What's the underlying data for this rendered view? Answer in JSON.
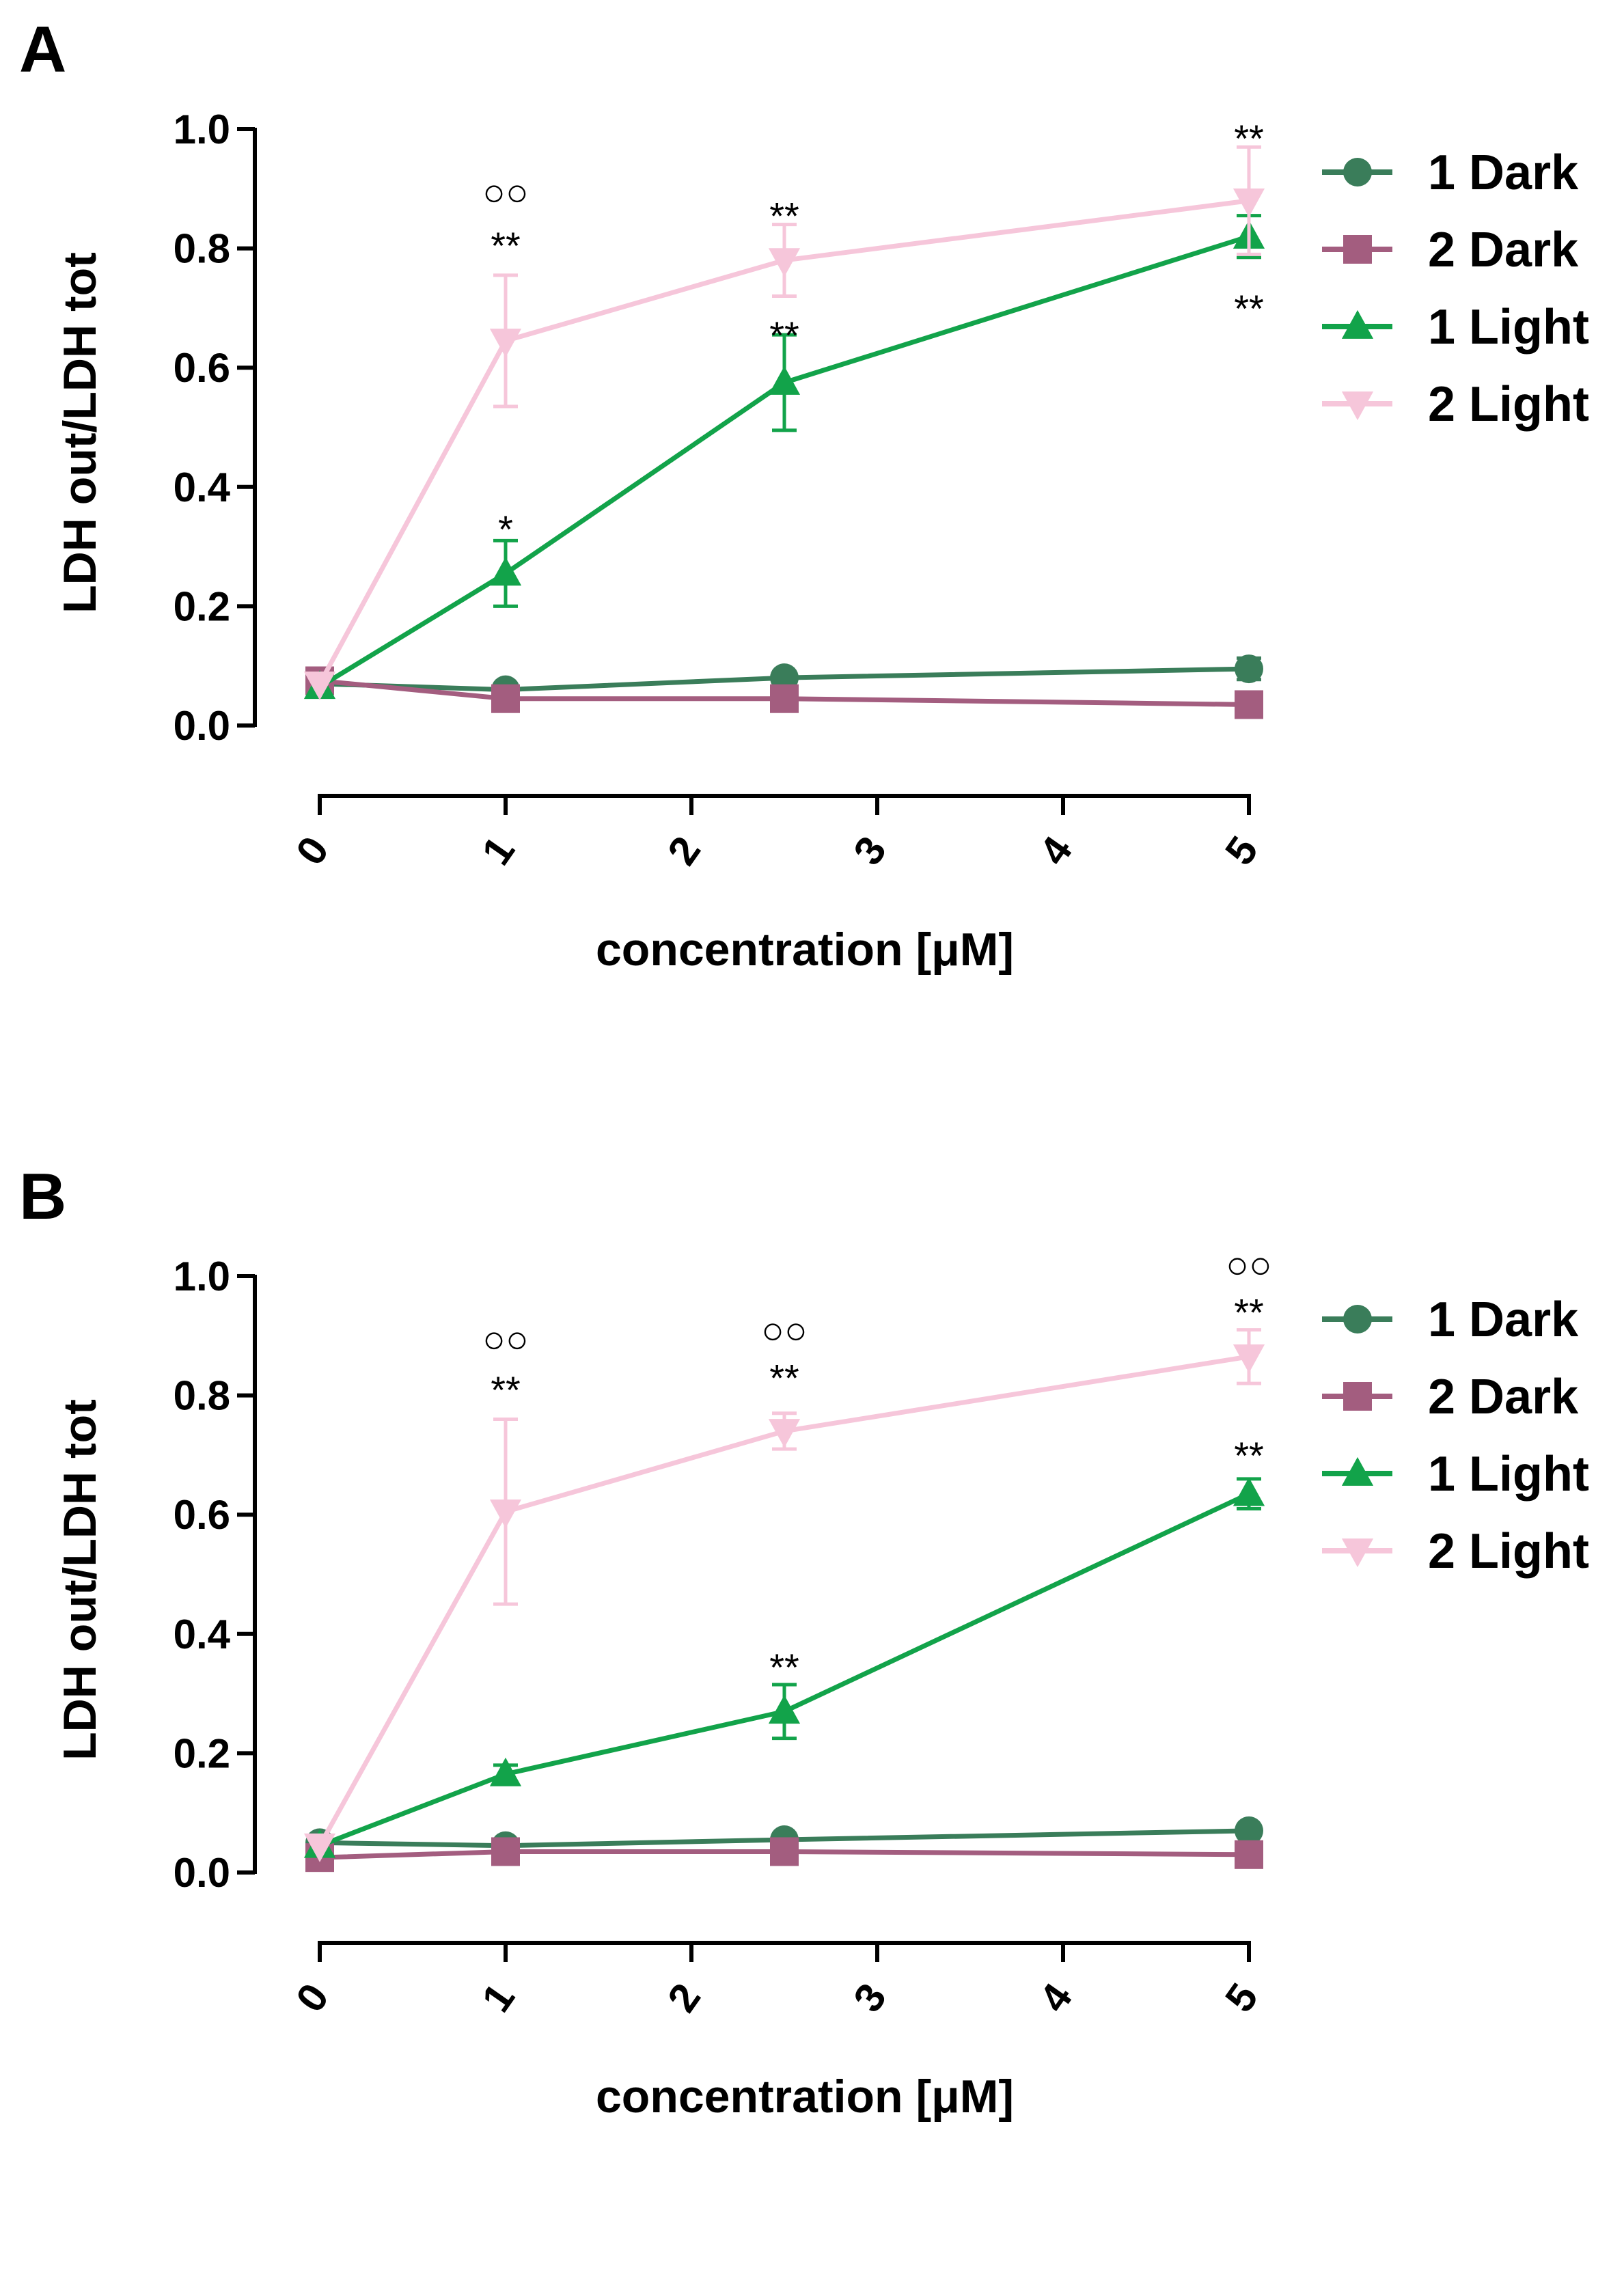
{
  "colors": {
    "dark1": "#3A7D5A",
    "dark2": "#A35D7F",
    "light1": "#12A34A",
    "light2": "#F6C6DA",
    "axis": "#000000"
  },
  "chart_data": [
    {
      "panel": "A",
      "type": "line",
      "xlabel": "concentration [μM]",
      "ylabel": "LDH out/LDH tot",
      "xlim": [
        0,
        5
      ],
      "ylim": [
        0.0,
        1.0
      ],
      "xticks": [
        "0",
        "1",
        "2",
        "3",
        "4",
        "5"
      ],
      "yticks": [
        "0.0",
        "0.2",
        "0.4",
        "0.6",
        "0.8",
        "1.0"
      ],
      "x": [
        0,
        1,
        2.5,
        5
      ],
      "legend": [
        "1 Dark",
        "2 Dark",
        "1 Light",
        "2 Light"
      ],
      "series": [
        {
          "name": "1 Dark",
          "color": "#3A7D5A",
          "marker": "circle",
          "values": [
            0.07,
            0.06,
            0.08,
            0.095
          ],
          "errors": [
            0.005,
            0.005,
            0.005,
            0.018
          ]
        },
        {
          "name": "2 Dark",
          "color": "#A35D7F",
          "marker": "square",
          "values": [
            0.075,
            0.045,
            0.045,
            0.035
          ],
          "errors": [
            0.005,
            0.005,
            0.005,
            0.005
          ]
        },
        {
          "name": "1 Light",
          "color": "#12A34A",
          "marker": "triangle-up",
          "values": [
            0.065,
            0.255,
            0.575,
            0.82
          ],
          "errors": [
            0.005,
            0.055,
            0.08,
            0.035
          ]
        },
        {
          "name": "2 Light",
          "color": "#F6C6DA",
          "marker": "triangle-down",
          "values": [
            0.07,
            0.645,
            0.78,
            0.88
          ],
          "errors": [
            0.005,
            0.11,
            0.06,
            0.09
          ]
        }
      ],
      "annotations": [
        {
          "x": 1,
          "y": 0.895,
          "text": "○○"
        },
        {
          "x": 1,
          "y": 0.805,
          "text": "**"
        },
        {
          "x": 2.5,
          "y": 0.855,
          "text": "**"
        },
        {
          "x": 5,
          "y": 0.985,
          "text": "**"
        },
        {
          "x": 2.5,
          "y": 0.655,
          "text": "**"
        },
        {
          "x": 5,
          "y": 0.7,
          "text": "**"
        },
        {
          "x": 1,
          "y": 0.33,
          "text": "*"
        }
      ]
    },
    {
      "panel": "B",
      "type": "line",
      "xlabel": "concentration [μM]",
      "ylabel": "LDH out/LDH tot",
      "xlim": [
        0,
        5
      ],
      "ylim": [
        0.0,
        1.0
      ],
      "xticks": [
        "0",
        "1",
        "2",
        "3",
        "4",
        "5"
      ],
      "yticks": [
        "0.0",
        "0.2",
        "0.4",
        "0.6",
        "0.8",
        "1.0"
      ],
      "x": [
        0,
        1,
        2.5,
        5
      ],
      "legend": [
        "1 Dark",
        "2 Dark",
        "1 Light",
        "2 Light"
      ],
      "series": [
        {
          "name": "1 Dark",
          "color": "#3A7D5A",
          "marker": "circle",
          "values": [
            0.05,
            0.045,
            0.055,
            0.07
          ],
          "errors": [
            0.005,
            0.005,
            0.005,
            0.005
          ]
        },
        {
          "name": "2 Dark",
          "color": "#A35D7F",
          "marker": "square",
          "values": [
            0.025,
            0.035,
            0.035,
            0.03
          ],
          "errors": [
            0.005,
            0.005,
            0.005,
            0.005
          ]
        },
        {
          "name": "1 Light",
          "color": "#12A34A",
          "marker": "triangle-up",
          "values": [
            0.045,
            0.165,
            0.27,
            0.635
          ],
          "errors": [
            0.005,
            0.015,
            0.045,
            0.025
          ]
        },
        {
          "name": "2 Light",
          "color": "#F6C6DA",
          "marker": "triangle-down",
          "values": [
            0.045,
            0.605,
            0.74,
            0.865
          ],
          "errors": [
            0.005,
            0.155,
            0.03,
            0.045
          ]
        }
      ],
      "annotations": [
        {
          "x": 1,
          "y": 0.895,
          "text": "○○"
        },
        {
          "x": 1,
          "y": 0.81,
          "text": "**"
        },
        {
          "x": 2.5,
          "y": 0.91,
          "text": "○○"
        },
        {
          "x": 2.5,
          "y": 0.83,
          "text": "**"
        },
        {
          "x": 5,
          "y": 1.02,
          "text": "○○"
        },
        {
          "x": 5,
          "y": 0.94,
          "text": "**"
        },
        {
          "x": 5,
          "y": 0.7,
          "text": "**"
        },
        {
          "x": 2.5,
          "y": 0.345,
          "text": "**"
        }
      ]
    }
  ]
}
